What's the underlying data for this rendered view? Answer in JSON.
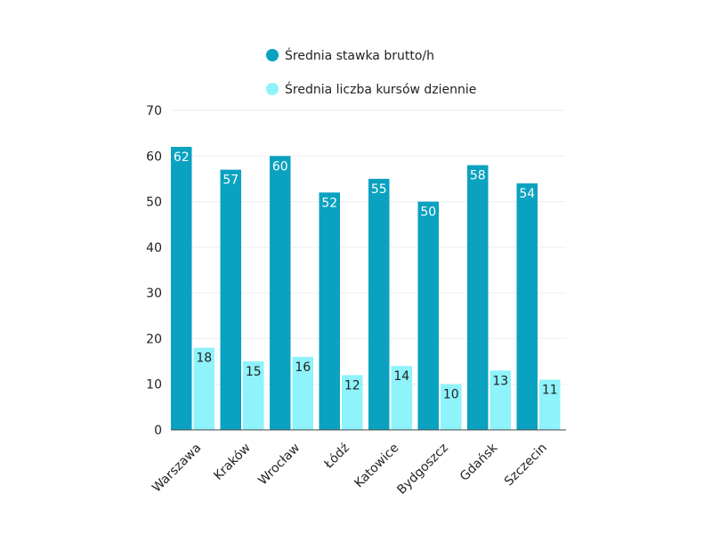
{
  "chart_data": {
    "type": "bar",
    "categories": [
      "Warszawa",
      "Kraków",
      "Wrocław",
      "Łódź",
      "Katowice",
      "Bydgoszcz",
      "Gdańsk",
      "Szczecin"
    ],
    "series": [
      {
        "name": "Średnia stawka brutto/h",
        "values": [
          62,
          57,
          60,
          52,
          55,
          50,
          58,
          54
        ],
        "color": "#0aa2c0"
      },
      {
        "name": "Średnia liczba kursów dziennie",
        "values": [
          18,
          15,
          16,
          12,
          14,
          10,
          13,
          11
        ],
        "color": "#8ef3fb"
      }
    ],
    "yticks": [
      0,
      10,
      20,
      30,
      40,
      50,
      60,
      70
    ],
    "ylim": [
      0,
      70
    ],
    "grid": true,
    "legend": "top"
  }
}
